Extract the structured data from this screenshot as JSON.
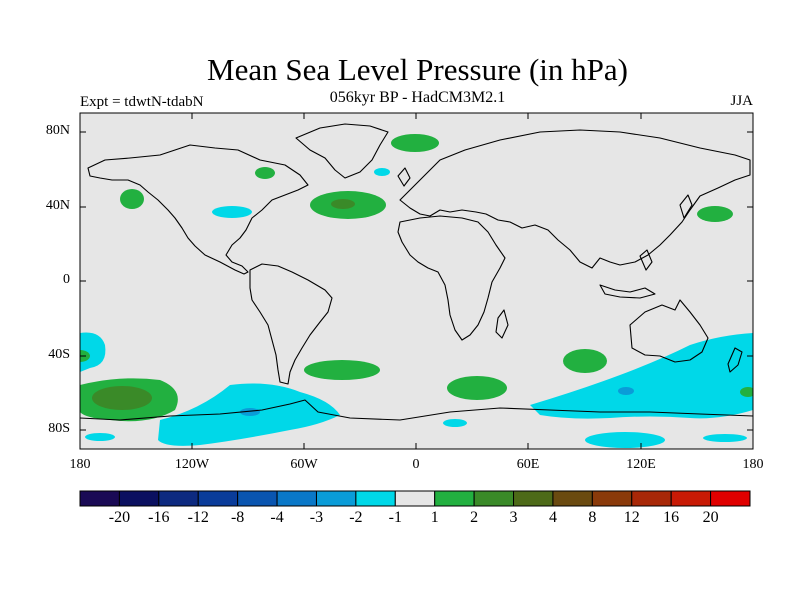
{
  "title": "Mean Sea Level Pressure (in hPa)",
  "subtitle": "056kyr BP - HadCM3M2.1",
  "experiment": "Expt = tdwtN-tdabN",
  "season": "JJA",
  "lat_ticks": [
    "80N",
    "40N",
    "0",
    "40S",
    "80S"
  ],
  "lon_ticks": [
    "180",
    "120W",
    "60W",
    "0",
    "60E",
    "120E",
    "180"
  ],
  "colorbar": {
    "labels": [
      "-20",
      "-16",
      "-12",
      "-8",
      "-4",
      "-3",
      "-2",
      "-1",
      "1",
      "2",
      "3",
      "4",
      "8",
      "12",
      "16",
      "20"
    ],
    "colors": [
      "#1a0a55",
      "#0b1060",
      "#0d2a80",
      "#0a3c9a",
      "#0a55b0",
      "#0a78c8",
      "#0a9cd8",
      "#00d8e8",
      "#e6e6e6",
      "#22b040",
      "#3a8a28",
      "#4d6a18",
      "#6a4a10",
      "#8a3a0a",
      "#a82808",
      "#c81a05",
      "#e00000"
    ]
  },
  "colors": {
    "ocean_bg": "#e6e6e6",
    "coast": "#000000",
    "cyan": "#00d8e8",
    "blue": "#0a9cd8",
    "green": "#22b040",
    "olive": "#3a8a28"
  }
}
